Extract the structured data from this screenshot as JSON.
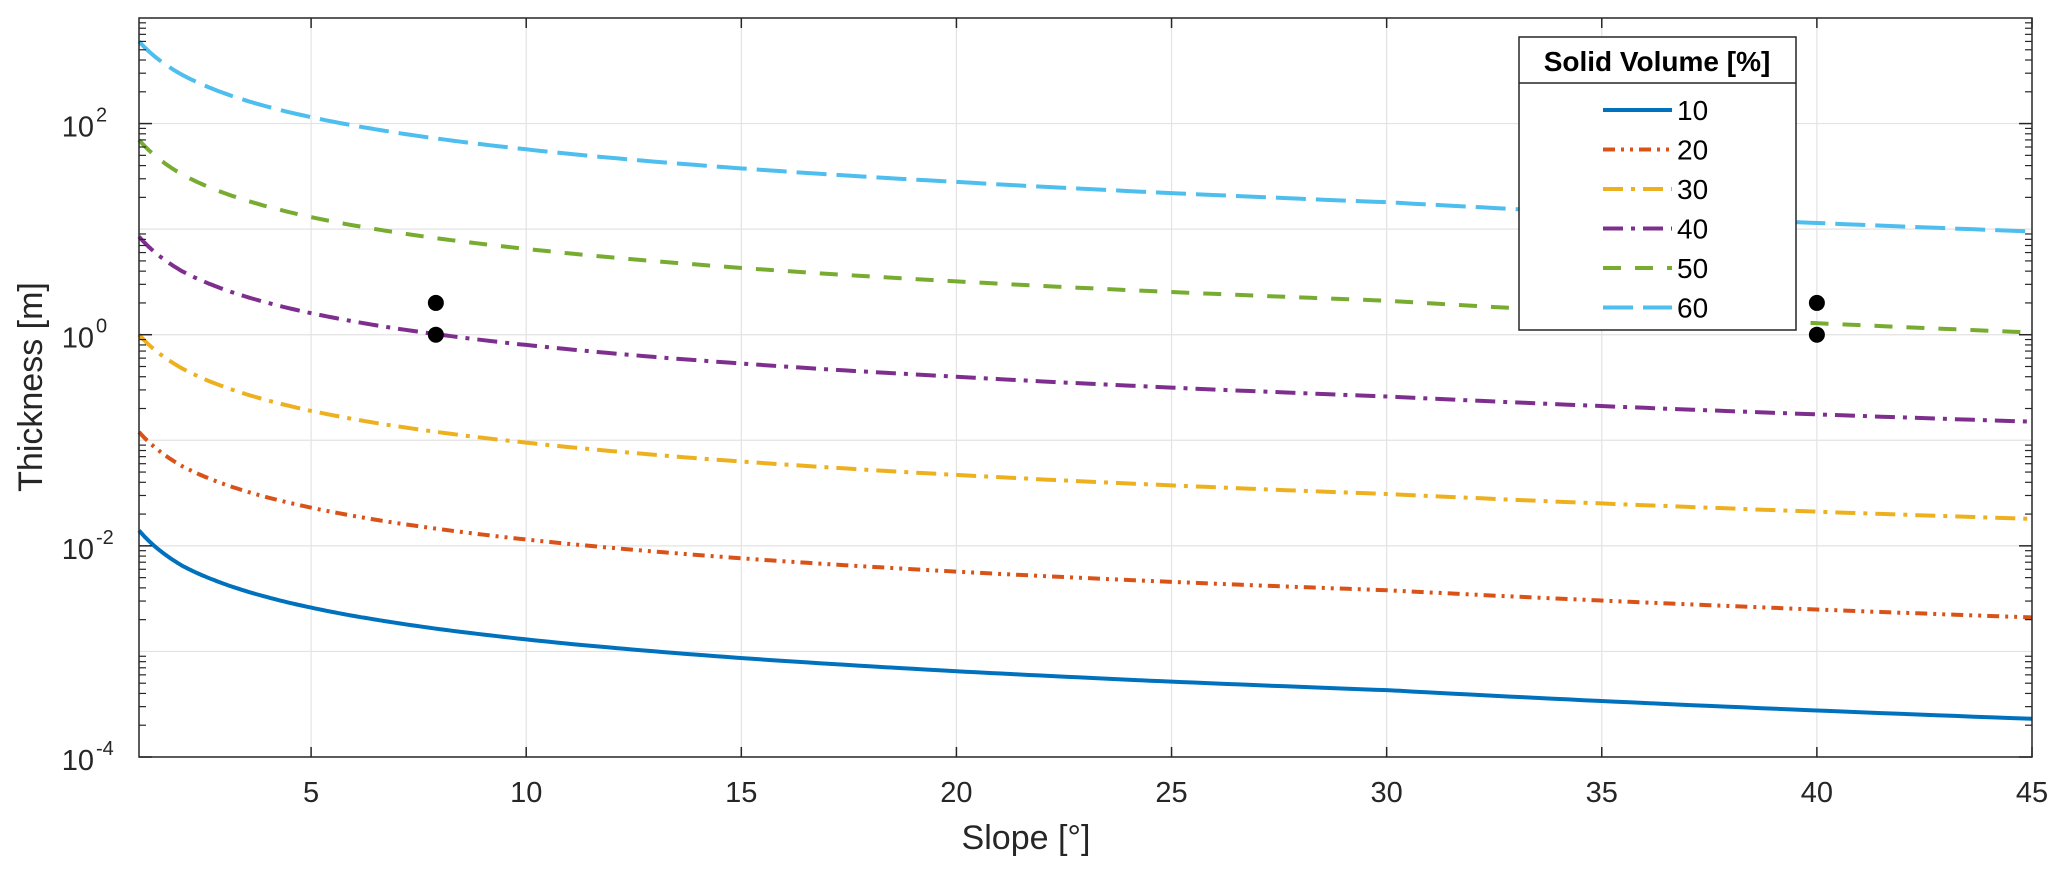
{
  "chart_data": {
    "type": "line",
    "xlabel": "Slope [°]",
    "ylabel": "Thickness [m]",
    "xlim": [
      1,
      45
    ],
    "ylim": [
      0.0001,
      1000
    ],
    "yscale": "log",
    "grid": true,
    "x_ticks": [
      "5",
      "10",
      "15",
      "20",
      "25",
      "30",
      "35",
      "40",
      "45"
    ],
    "x_tick_values": [
      5,
      10,
      15,
      20,
      25,
      30,
      35,
      40,
      45
    ],
    "y_ticks": [
      {
        "value": 0.0001,
        "base": "10",
        "exp": "-4"
      },
      {
        "value": 0.01,
        "base": "10",
        "exp": "-2"
      },
      {
        "value": 1,
        "base": "10",
        "exp": "0"
      },
      {
        "value": 100,
        "base": "10",
        "exp": "2"
      }
    ],
    "legend": {
      "title": "Solid Volume [%]",
      "position": "top-right"
    },
    "series": [
      {
        "name": "10",
        "color": "#0072BD",
        "dash": "solid",
        "x": [
          1,
          2,
          5,
          10,
          20,
          30,
          45
        ],
        "values": [
          0.014,
          0.0065,
          0.0026,
          0.0013,
          0.00065,
          0.00043,
          0.00023
        ]
      },
      {
        "name": "20",
        "color": "#D95319",
        "dash": "dashdotdot",
        "x": [
          1,
          2,
          5,
          10,
          20,
          30,
          45
        ],
        "values": [
          0.12,
          0.057,
          0.023,
          0.0115,
          0.0057,
          0.0038,
          0.0021
        ]
      },
      {
        "name": "30",
        "color": "#EDB120",
        "dash": "dashdot",
        "x": [
          1,
          2,
          5,
          10,
          20,
          30,
          45
        ],
        "values": [
          1.0,
          0.48,
          0.19,
          0.095,
          0.047,
          0.031,
          0.018
        ]
      },
      {
        "name": "40",
        "color": "#7E2F8E",
        "dash": "dashdot",
        "x": [
          1,
          2,
          5,
          10,
          20,
          30,
          45
        ],
        "values": [
          8.5,
          4.0,
          1.6,
          0.8,
          0.4,
          0.26,
          0.15
        ]
      },
      {
        "name": "50",
        "color": "#77AC30",
        "dash": "dashed",
        "x": [
          1,
          2,
          5,
          10,
          20,
          30,
          45
        ],
        "values": [
          70,
          33,
          13,
          6.5,
          3.2,
          2.1,
          1.05
        ]
      },
      {
        "name": "60",
        "color": "#4DBEEE",
        "dash": "longdash",
        "x": [
          1,
          2,
          5,
          10,
          20,
          30,
          45
        ],
        "values": [
          600,
          290,
          115,
          57,
          28,
          18,
          9.5
        ]
      }
    ],
    "markers": [
      {
        "x": 7.9,
        "y": 2.0
      },
      {
        "x": 7.9,
        "y": 1.0
      },
      {
        "x": 40,
        "y": 2.0
      },
      {
        "x": 40,
        "y": 1.0
      }
    ]
  }
}
